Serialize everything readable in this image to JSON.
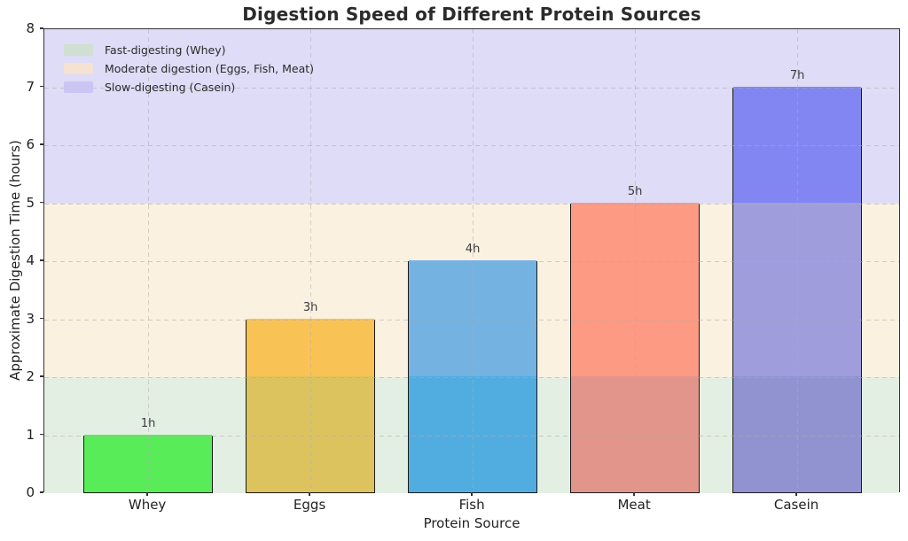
{
  "chart_data": {
    "type": "bar",
    "title": "Digestion Speed of Different Protein Sources",
    "xlabel": "Protein Source",
    "ylabel": "Approximate Digestion Time (hours)",
    "ylim": [
      0,
      8
    ],
    "yticks": [
      "0",
      "1",
      "2",
      "3",
      "4",
      "5",
      "6",
      "7",
      "8"
    ],
    "grid": true,
    "categories": [
      "Whey",
      "Eggs",
      "Fish",
      "Meat",
      "Casein"
    ],
    "values": [
      1,
      3,
      4,
      5,
      7
    ],
    "bar_labels": [
      "1h",
      "3h",
      "4h",
      "5h",
      "7h"
    ],
    "bars": [
      {
        "category": "Whey",
        "value": 1,
        "label": "1h",
        "segments": [
          {
            "from": 0,
            "to": 1,
            "color": "#58ed58"
          }
        ]
      },
      {
        "category": "Eggs",
        "value": 3,
        "label": "3h",
        "segments": [
          {
            "from": 0,
            "to": 2,
            "color": "#ddc35e"
          },
          {
            "from": 2,
            "to": 3,
            "color": "#f9c254"
          }
        ]
      },
      {
        "category": "Fish",
        "value": 4,
        "label": "4h",
        "segments": [
          {
            "from": 0,
            "to": 2,
            "color": "#51ade0"
          },
          {
            "from": 2,
            "to": 4,
            "color": "#74b2e2"
          }
        ]
      },
      {
        "category": "Meat",
        "value": 5,
        "label": "5h",
        "segments": [
          {
            "from": 0,
            "to": 2,
            "color": "#e2958a"
          },
          {
            "from": 2,
            "to": 5,
            "color": "#fc9a84"
          }
        ]
      },
      {
        "category": "Casein",
        "value": 7,
        "label": "7h",
        "segments": [
          {
            "from": 0,
            "to": 2,
            "color": "#9193d0"
          },
          {
            "from": 2,
            "to": 5,
            "color": "#a09ddd"
          },
          {
            "from": 5,
            "to": 7,
            "color": "#8286f2"
          }
        ]
      }
    ],
    "bands": [
      {
        "from": 0,
        "to": 2,
        "color": "#e4efe4",
        "meaning": "Fast-digesting (Whey)"
      },
      {
        "from": 2,
        "to": 5,
        "color": "#faf1e0",
        "meaning": "Moderate digestion (Eggs, Fish, Meat)"
      },
      {
        "from": 5,
        "to": 8,
        "color": "#dedcf6",
        "meaning": "Slow-digesting (Casein)"
      }
    ],
    "legend": {
      "position": "upper-left",
      "items": [
        {
          "label": "Fast-digesting (Whey)",
          "swatch": "#cfe0d2"
        },
        {
          "label": "Moderate digestion (Eggs, Fish, Meat)",
          "swatch": "#f4e3d2"
        },
        {
          "label": "Slow-digesting (Casein)",
          "swatch": "#c9c6f4"
        }
      ]
    }
  }
}
